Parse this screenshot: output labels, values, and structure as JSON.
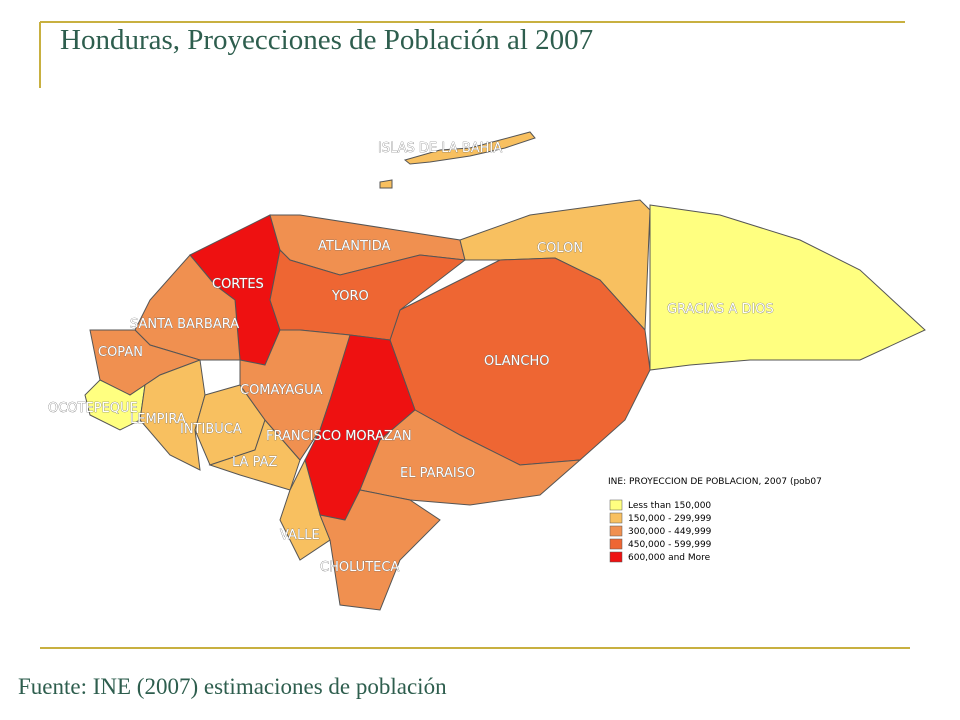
{
  "title": "Honduras, Proyecciones de Población al 2007",
  "map": {
    "islands": {
      "name": "ISLAS DE LA BAHIA",
      "color": "#f8c060"
    },
    "departments": [
      {
        "name": "CORTES",
        "color": "#ee1111"
      },
      {
        "name": "ATLANTIDA",
        "color": "#f09050"
      },
      {
        "name": "COLON",
        "color": "#f8c060"
      },
      {
        "name": "GRACIAS A DIOS",
        "color": "#ffff80"
      },
      {
        "name": "OLANCHO",
        "color": "#ee6633"
      },
      {
        "name": "YORO",
        "color": "#ee6633"
      },
      {
        "name": "SANTA BARBARA",
        "color": "#f09050"
      },
      {
        "name": "COPAN",
        "color": "#f09050"
      },
      {
        "name": "OCOTEPEQUE",
        "color": "#ffff80"
      },
      {
        "name": "LEMPIRA",
        "color": "#f8c060"
      },
      {
        "name": "INTIBUCA",
        "color": "#f8c060"
      },
      {
        "name": "LA PAZ",
        "color": "#f8c060"
      },
      {
        "name": "COMAYAGUA",
        "color": "#f09050"
      },
      {
        "name": "FRANCISCO MORAZAN",
        "color": "#ee1111"
      },
      {
        "name": "EL PARAISO",
        "color": "#f09050"
      },
      {
        "name": "VALLE",
        "color": "#f8c060"
      },
      {
        "name": "CHOLUTECA",
        "color": "#f09050"
      }
    ]
  },
  "legend": {
    "title": "INE: PROYECCION DE POBLACION, 2007 (pob07",
    "items": [
      {
        "label": "Less than 150,000",
        "color": "#ffff80"
      },
      {
        "label": "150,000 - 299,999",
        "color": "#f8c060"
      },
      {
        "label": "300,000 - 449,999",
        "color": "#f09050"
      },
      {
        "label": "450,000 - 599,999",
        "color": "#ee6633"
      },
      {
        "label": "600,000 and More",
        "color": "#ee1111"
      }
    ]
  },
  "source": "Fuente: INE (2007) estimaciones de población"
}
